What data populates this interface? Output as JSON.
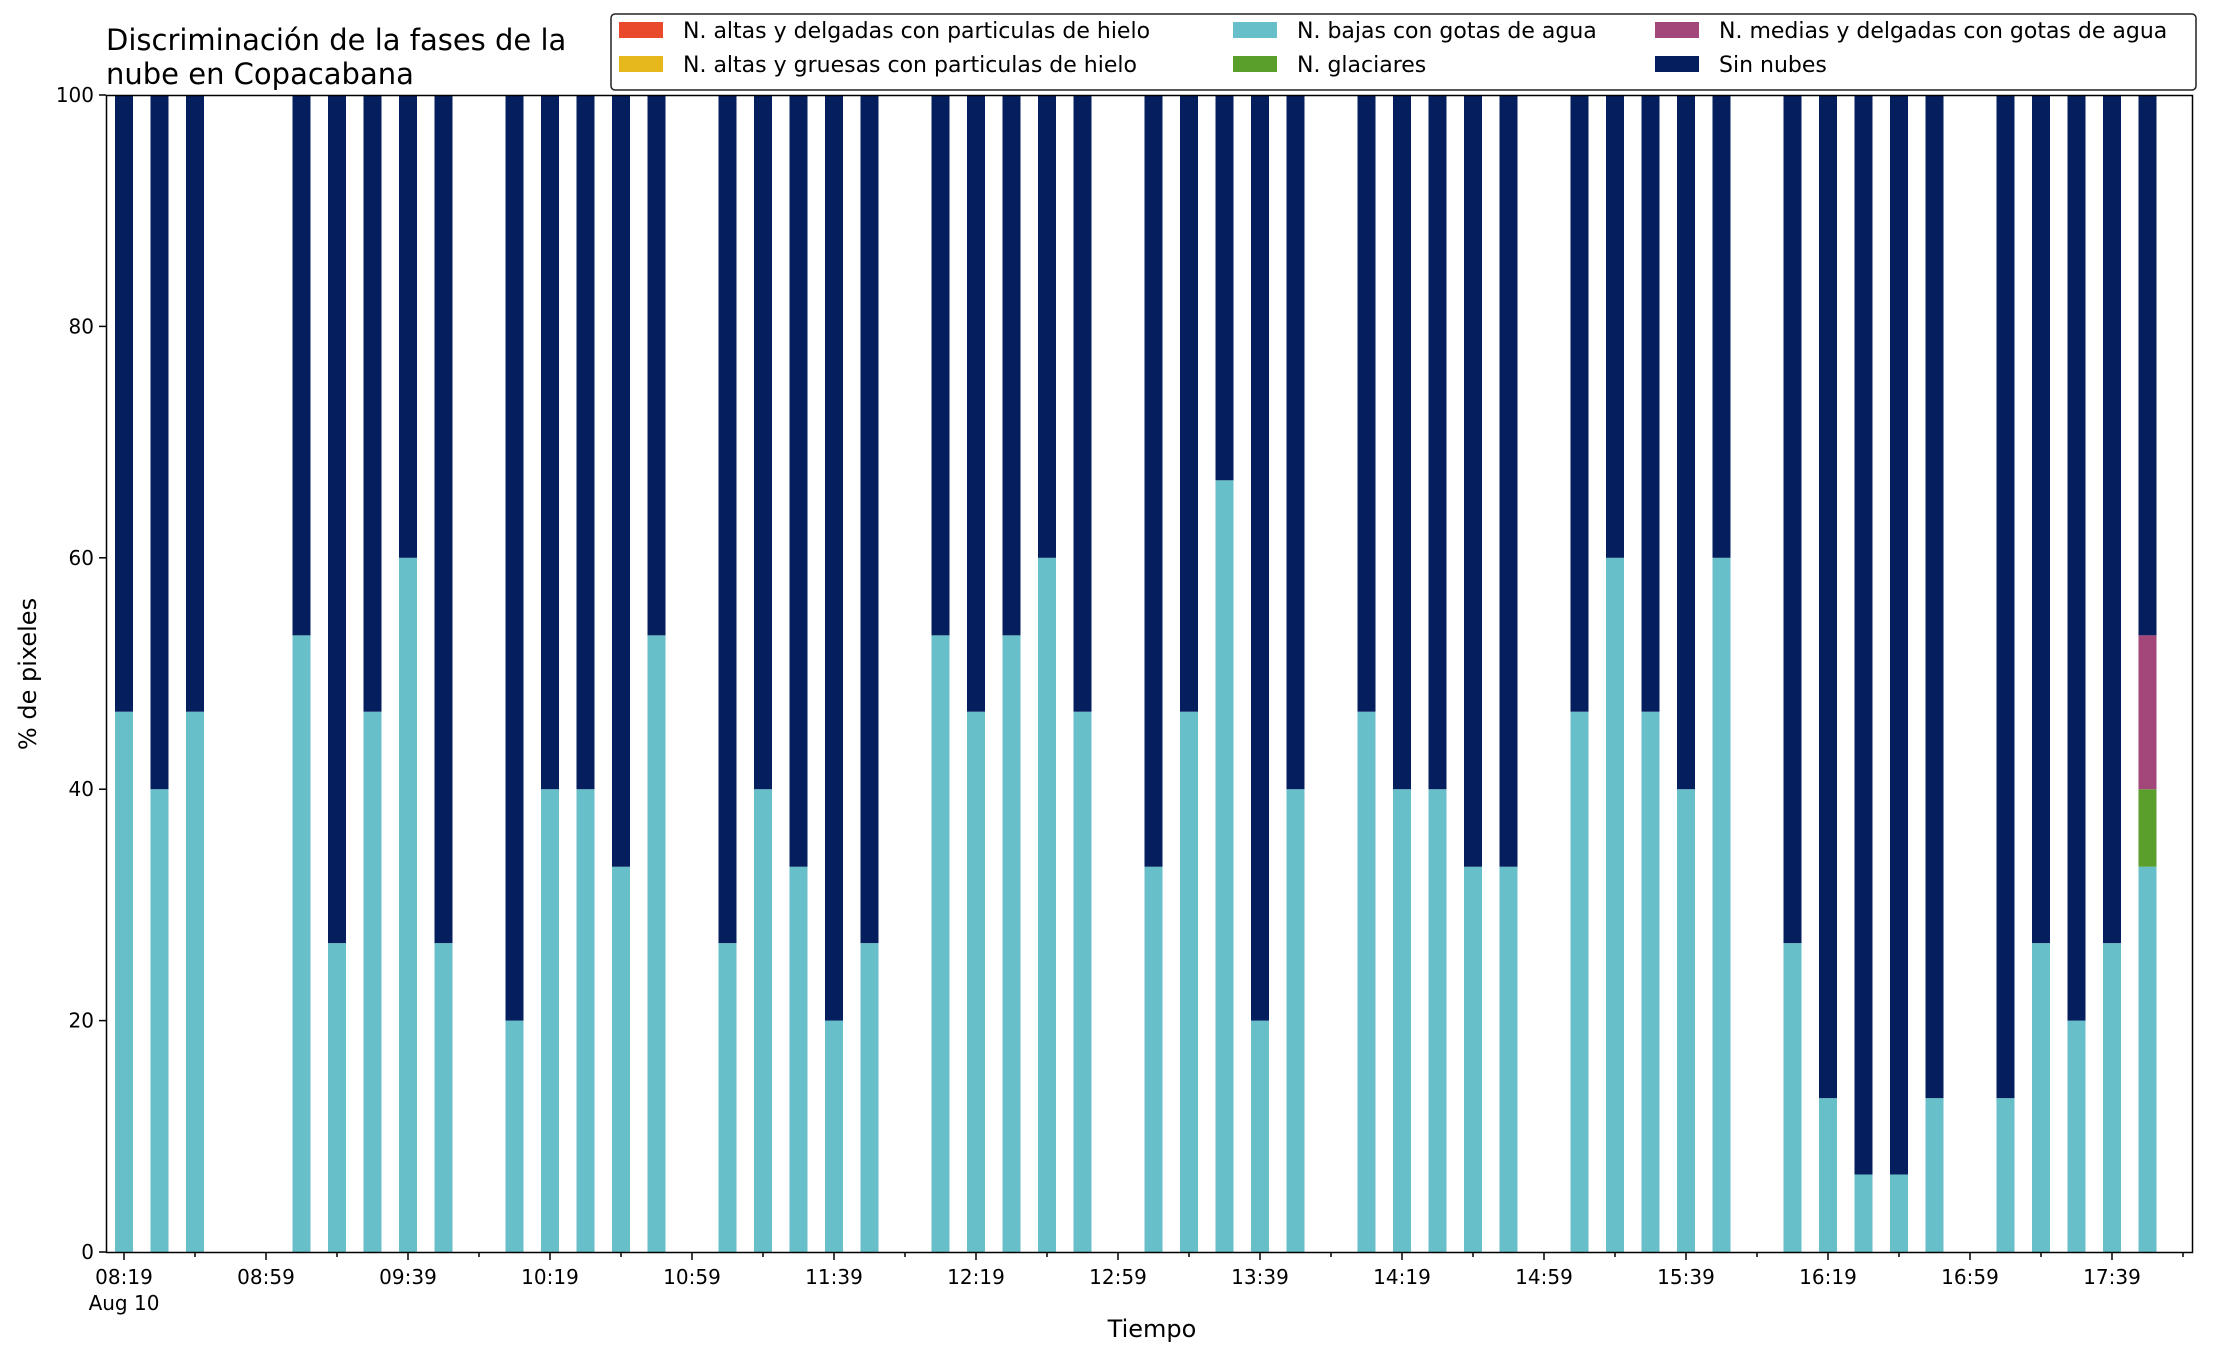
{
  "chart_data": {
    "type": "bar",
    "stacked": true,
    "title_lines": [
      "Discriminación de la fases de la",
      "nube en Copacabana"
    ],
    "xlabel": "Tiempo",
    "ylabel": "% de pixeles",
    "ylim": [
      0,
      100
    ],
    "yticks": [
      "0",
      "20",
      "40",
      "60",
      "80",
      "100"
    ],
    "grid": false,
    "legend_position": "top-right",
    "x_tick_labels": [
      "08:19",
      "08:59",
      "09:39",
      "10:19",
      "10:59",
      "11:39",
      "12:19",
      "12:59",
      "13:39",
      "14:19",
      "14:59",
      "15:39",
      "16:19",
      "16:59",
      "17:39"
    ],
    "x_tick_sublabel": "Aug 10",
    "times": [
      "08:19",
      "08:29",
      "08:39",
      "08:49",
      "08:59",
      "09:09",
      "09:19",
      "09:29",
      "09:39",
      "09:49",
      "09:59",
      "10:09",
      "10:19",
      "10:29",
      "10:39",
      "10:49",
      "10:59",
      "11:09",
      "11:19",
      "11:29",
      "11:39",
      "11:49",
      "11:59",
      "12:09",
      "12:19",
      "12:29",
      "12:39",
      "12:49",
      "12:59",
      "13:09",
      "13:19",
      "13:29",
      "13:39",
      "13:49",
      "13:59",
      "14:09",
      "14:19",
      "14:29",
      "14:39",
      "14:49",
      "14:59",
      "15:09",
      "15:19",
      "15:29",
      "15:39",
      "15:49",
      "15:59",
      "16:09",
      "16:19",
      "16:29",
      "16:39",
      "16:49",
      "16:59",
      "17:09",
      "17:19",
      "17:29",
      "17:39",
      "17:49"
    ],
    "series": [
      {
        "name": "N. altas y delgadas con particulas de hielo",
        "color": "#e84a2b",
        "values": [
          0,
          0,
          0,
          null,
          null,
          0,
          0,
          0,
          0,
          0,
          null,
          0,
          0,
          0,
          0,
          0,
          null,
          0,
          0,
          0,
          0,
          0,
          null,
          0,
          0,
          0,
          0,
          0,
          null,
          0,
          0,
          0,
          0,
          0,
          null,
          0,
          0,
          0,
          0,
          0,
          null,
          0,
          0,
          0,
          0,
          0,
          null,
          0,
          0,
          0,
          0,
          0,
          null,
          0,
          0,
          0,
          0,
          0
        ]
      },
      {
        "name": "N. altas y gruesas con particulas de hielo",
        "color": "#e6b81c",
        "values": [
          0,
          0,
          0,
          null,
          null,
          0,
          0,
          0,
          0,
          0,
          null,
          0,
          0,
          0,
          0,
          0,
          null,
          0,
          0,
          0,
          0,
          0,
          null,
          0,
          0,
          0,
          0,
          0,
          null,
          0,
          0,
          0,
          0,
          0,
          null,
          0,
          0,
          0,
          0,
          0,
          null,
          0,
          0,
          0,
          0,
          0,
          null,
          0,
          0,
          0,
          0,
          0,
          null,
          0,
          0,
          0,
          0,
          0
        ]
      },
      {
        "name": "N. bajas con gotas de agua",
        "color": "#67bfca",
        "values": [
          46.7,
          40,
          46.7,
          null,
          null,
          53.3,
          26.7,
          46.7,
          60,
          26.7,
          null,
          20,
          40,
          40,
          33.3,
          53.3,
          null,
          26.7,
          40,
          33.3,
          20,
          26.7,
          null,
          53.3,
          46.7,
          53.3,
          60,
          46.7,
          null,
          33.3,
          46.7,
          66.7,
          20,
          40,
          null,
          46.7,
          40,
          40,
          33.3,
          33.3,
          null,
          46.7,
          60,
          46.7,
          40,
          60,
          null,
          26.7,
          13.3,
          6.7,
          6.7,
          13.3,
          null,
          13.3,
          26.7,
          20,
          26.7,
          33.3
        ]
      },
      {
        "name": "N. glaciares",
        "color": "#5a9e2c",
        "values": [
          0,
          0,
          0,
          null,
          null,
          0,
          0,
          0,
          0,
          0,
          null,
          0,
          0,
          0,
          0,
          0,
          null,
          0,
          0,
          0,
          0,
          0,
          null,
          0,
          0,
          0,
          0,
          0,
          null,
          0,
          0,
          0,
          0,
          0,
          null,
          0,
          0,
          0,
          0,
          0,
          null,
          0,
          0,
          0,
          0,
          0,
          null,
          0,
          0,
          0,
          0,
          0,
          null,
          0,
          0,
          0,
          0,
          6.7
        ]
      },
      {
        "name": "N. medias y delgadas con gotas de agua",
        "color": "#a3467a",
        "values": [
          0,
          0,
          0,
          null,
          null,
          0,
          0,
          0,
          0,
          0,
          null,
          0,
          0,
          0,
          0,
          0,
          null,
          0,
          0,
          0,
          0,
          0,
          null,
          0,
          0,
          0,
          0,
          0,
          null,
          0,
          0,
          0,
          0,
          0,
          null,
          0,
          0,
          0,
          0,
          0,
          null,
          0,
          0,
          0,
          0,
          0,
          null,
          0,
          0,
          0,
          0,
          0,
          null,
          0,
          0,
          0,
          0,
          13.3
        ]
      },
      {
        "name": "Sin nubes",
        "color": "#051e5e",
        "values": [
          53.3,
          60,
          53.3,
          null,
          null,
          46.7,
          73.3,
          53.3,
          40,
          73.3,
          null,
          80,
          60,
          60,
          66.7,
          46.7,
          null,
          73.3,
          60,
          66.7,
          80,
          73.3,
          null,
          46.7,
          53.3,
          46.7,
          40,
          53.3,
          null,
          66.7,
          53.3,
          33.3,
          80,
          60,
          null,
          53.3,
          60,
          60,
          66.7,
          66.7,
          null,
          53.3,
          40,
          53.3,
          60,
          40,
          null,
          73.3,
          86.7,
          93.3,
          93.3,
          86.7,
          null,
          86.7,
          73.3,
          80,
          73.3,
          46.7
        ]
      }
    ]
  }
}
